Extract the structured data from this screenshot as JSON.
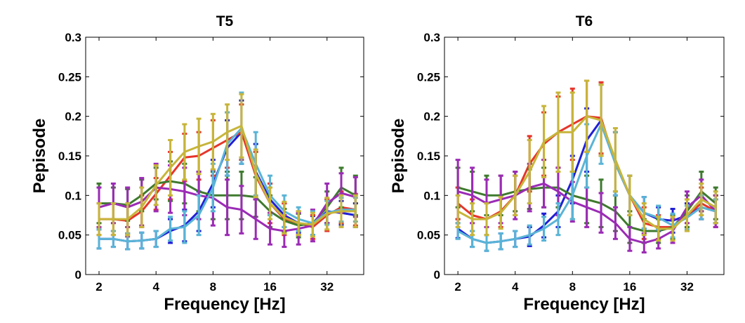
{
  "chart_data": [
    {
      "type": "line",
      "title": "T5",
      "xlabel": "Frequency [Hz]",
      "ylabel": "Pepisode",
      "xscale": "log2",
      "xlim": [
        1.7,
        50
      ],
      "ylim": [
        0,
        0.3
      ],
      "xticks": [
        2,
        4,
        8,
        16,
        32
      ],
      "xtick_labels": [
        "2",
        "4",
        "8",
        "16",
        "32"
      ],
      "yticks": [
        0,
        0.05,
        0.1,
        0.15,
        0.2,
        0.25,
        0.3
      ],
      "ytick_labels": [
        "0",
        "0.05",
        "0.1",
        "0.15",
        "0.2",
        "0.25",
        "0.3"
      ],
      "grid": false,
      "legend": false,
      "x": [
        2,
        2.38,
        2.83,
        3.36,
        4,
        4.76,
        5.66,
        6.73,
        8,
        9.51,
        11.31,
        13.45,
        16,
        19.03,
        22.63,
        26.91,
        32,
        38.05,
        45.25
      ],
      "series": [
        {
          "color": "#1f1fd6",
          "values": [
            0.045,
            0.045,
            0.042,
            0.043,
            0.045,
            0.055,
            0.062,
            0.08,
            0.115,
            0.16,
            0.18,
            0.13,
            0.095,
            0.075,
            0.065,
            0.062,
            0.08,
            0.078,
            0.075
          ],
          "err": [
            0.012,
            0.01,
            0.01,
            0.01,
            0.01,
            0.015,
            0.02,
            0.025,
            0.03,
            0.035,
            0.04,
            0.035,
            0.02,
            0.015,
            0.012,
            0.012,
            0.015,
            0.015,
            0.015
          ]
        },
        {
          "color": "#e6352a",
          "values": [
            0.07,
            0.07,
            0.068,
            0.08,
            0.102,
            0.125,
            0.148,
            0.15,
            0.16,
            0.17,
            0.18,
            0.125,
            0.09,
            0.07,
            0.065,
            0.06,
            0.075,
            0.085,
            0.082
          ],
          "err": [
            0.02,
            0.02,
            0.02,
            0.02,
            0.02,
            0.03,
            0.03,
            0.03,
            0.035,
            0.035,
            0.035,
            0.03,
            0.025,
            0.02,
            0.015,
            0.015,
            0.02,
            0.02,
            0.02
          ]
        },
        {
          "color": "#3e7a2e",
          "values": [
            0.09,
            0.09,
            0.088,
            0.1,
            0.115,
            0.118,
            0.115,
            0.105,
            0.1,
            0.1,
            0.1,
            0.098,
            0.08,
            0.068,
            0.062,
            0.065,
            0.085,
            0.11,
            0.1
          ],
          "err": [
            0.025,
            0.02,
            0.02,
            0.02,
            0.02,
            0.025,
            0.025,
            0.025,
            0.03,
            0.03,
            0.03,
            0.025,
            0.02,
            0.015,
            0.015,
            0.015,
            0.02,
            0.025,
            0.025
          ]
        },
        {
          "color": "#9b2bb5",
          "values": [
            0.085,
            0.09,
            0.085,
            0.092,
            0.11,
            0.108,
            0.105,
            0.1,
            0.097,
            0.085,
            0.082,
            0.07,
            0.058,
            0.055,
            0.058,
            0.062,
            0.09,
            0.103,
            0.098
          ],
          "err": [
            0.025,
            0.025,
            0.025,
            0.03,
            0.03,
            0.03,
            0.03,
            0.03,
            0.035,
            0.035,
            0.03,
            0.025,
            0.02,
            0.02,
            0.02,
            0.02,
            0.025,
            0.025,
            0.025
          ]
        },
        {
          "color": "#5ab4d6",
          "values": [
            0.045,
            0.045,
            0.042,
            0.043,
            0.045,
            0.058,
            0.06,
            0.075,
            0.11,
            0.165,
            0.185,
            0.14,
            0.1,
            0.08,
            0.07,
            0.065,
            0.078,
            0.082,
            0.082
          ],
          "err": [
            0.012,
            0.01,
            0.01,
            0.01,
            0.01,
            0.015,
            0.02,
            0.025,
            0.03,
            0.04,
            0.045,
            0.04,
            0.025,
            0.02,
            0.015,
            0.015,
            0.015,
            0.015,
            0.015
          ]
        },
        {
          "color": "#c7b53a",
          "values": [
            0.07,
            0.07,
            0.07,
            0.085,
            0.113,
            0.135,
            0.155,
            0.162,
            0.168,
            0.18,
            0.188,
            0.128,
            0.09,
            0.072,
            0.065,
            0.063,
            0.077,
            0.08,
            0.08
          ],
          "err": [
            0.02,
            0.02,
            0.02,
            0.025,
            0.025,
            0.035,
            0.035,
            0.035,
            0.035,
            0.035,
            0.04,
            0.03,
            0.02,
            0.02,
            0.015,
            0.015,
            0.02,
            0.02,
            0.02
          ]
        }
      ]
    },
    {
      "type": "line",
      "title": "T6",
      "xlabel": "Frequency [Hz]",
      "ylabel": "Pepisode",
      "xscale": "log2",
      "xlim": [
        1.7,
        50
      ],
      "ylim": [
        0,
        0.3
      ],
      "xticks": [
        2,
        4,
        8,
        16,
        32
      ],
      "xtick_labels": [
        "2",
        "4",
        "8",
        "16",
        "32"
      ],
      "yticks": [
        0,
        0.05,
        0.1,
        0.15,
        0.2,
        0.25,
        0.3
      ],
      "ytick_labels": [
        "0",
        "0.05",
        "0.1",
        "0.15",
        "0.2",
        "0.25",
        "0.3"
      ],
      "grid": false,
      "legend": false,
      "x": [
        2,
        2.38,
        2.83,
        3.36,
        4,
        4.76,
        5.66,
        6.73,
        8,
        9.51,
        11.31,
        13.45,
        16,
        19.03,
        22.63,
        26.91,
        32,
        38.05,
        45.25
      ],
      "series": [
        {
          "color": "#1f1fd6",
          "values": [
            0.058,
            0.045,
            0.04,
            0.042,
            0.045,
            0.048,
            0.062,
            0.08,
            0.12,
            0.17,
            0.195,
            0.14,
            0.1,
            0.078,
            0.07,
            0.068,
            0.075,
            0.085,
            0.08
          ],
          "err": [
            0.012,
            0.01,
            0.01,
            0.01,
            0.01,
            0.012,
            0.015,
            0.02,
            0.03,
            0.04,
            0.045,
            0.04,
            0.025,
            0.02,
            0.015,
            0.015,
            0.015,
            0.015,
            0.015
          ]
        },
        {
          "color": "#e6352a",
          "values": [
            0.09,
            0.075,
            0.07,
            0.08,
            0.1,
            0.14,
            0.165,
            0.18,
            0.19,
            0.2,
            0.198,
            0.14,
            0.1,
            0.065,
            0.06,
            0.06,
            0.075,
            0.09,
            0.08
          ],
          "err": [
            0.02,
            0.02,
            0.02,
            0.02,
            0.025,
            0.035,
            0.04,
            0.045,
            0.045,
            0.045,
            0.045,
            0.04,
            0.025,
            0.02,
            0.015,
            0.015,
            0.02,
            0.02,
            0.02
          ]
        },
        {
          "color": "#3e7a2e",
          "values": [
            0.11,
            0.105,
            0.1,
            0.1,
            0.105,
            0.108,
            0.11,
            0.11,
            0.1,
            0.095,
            0.09,
            0.08,
            0.06,
            0.055,
            0.055,
            0.06,
            0.08,
            0.105,
            0.09
          ],
          "err": [
            0.025,
            0.025,
            0.025,
            0.025,
            0.025,
            0.025,
            0.025,
            0.025,
            0.03,
            0.03,
            0.03,
            0.025,
            0.02,
            0.015,
            0.015,
            0.015,
            0.02,
            0.025,
            0.02
          ]
        },
        {
          "color": "#9b2bb5",
          "values": [
            0.105,
            0.1,
            0.09,
            0.095,
            0.1,
            0.11,
            0.115,
            0.105,
            0.092,
            0.085,
            0.078,
            0.065,
            0.045,
            0.04,
            0.045,
            0.055,
            0.085,
            0.1,
            0.08
          ],
          "err": [
            0.04,
            0.035,
            0.03,
            0.03,
            0.03,
            0.03,
            0.03,
            0.03,
            0.025,
            0.025,
            0.025,
            0.02,
            0.015,
            0.012,
            0.012,
            0.015,
            0.02,
            0.02,
            0.02
          ]
        },
        {
          "color": "#5ab4d6",
          "values": [
            0.055,
            0.045,
            0.04,
            0.042,
            0.045,
            0.05,
            0.058,
            0.07,
            0.1,
            0.15,
            0.19,
            0.14,
            0.1,
            0.078,
            0.072,
            0.062,
            0.072,
            0.085,
            0.08
          ],
          "err": [
            0.01,
            0.01,
            0.01,
            0.01,
            0.01,
            0.012,
            0.015,
            0.02,
            0.03,
            0.04,
            0.05,
            0.04,
            0.025,
            0.02,
            0.015,
            0.015,
            0.015,
            0.015,
            0.015
          ]
        },
        {
          "color": "#c7b53a",
          "values": [
            0.08,
            0.07,
            0.07,
            0.078,
            0.1,
            0.13,
            0.168,
            0.18,
            0.18,
            0.2,
            0.195,
            0.145,
            0.1,
            0.07,
            0.058,
            0.058,
            0.075,
            0.095,
            0.085
          ],
          "err": [
            0.02,
            0.02,
            0.02,
            0.02,
            0.025,
            0.04,
            0.045,
            0.05,
            0.05,
            0.045,
            0.045,
            0.04,
            0.025,
            0.02,
            0.015,
            0.015,
            0.02,
            0.02,
            0.02
          ]
        }
      ]
    }
  ]
}
